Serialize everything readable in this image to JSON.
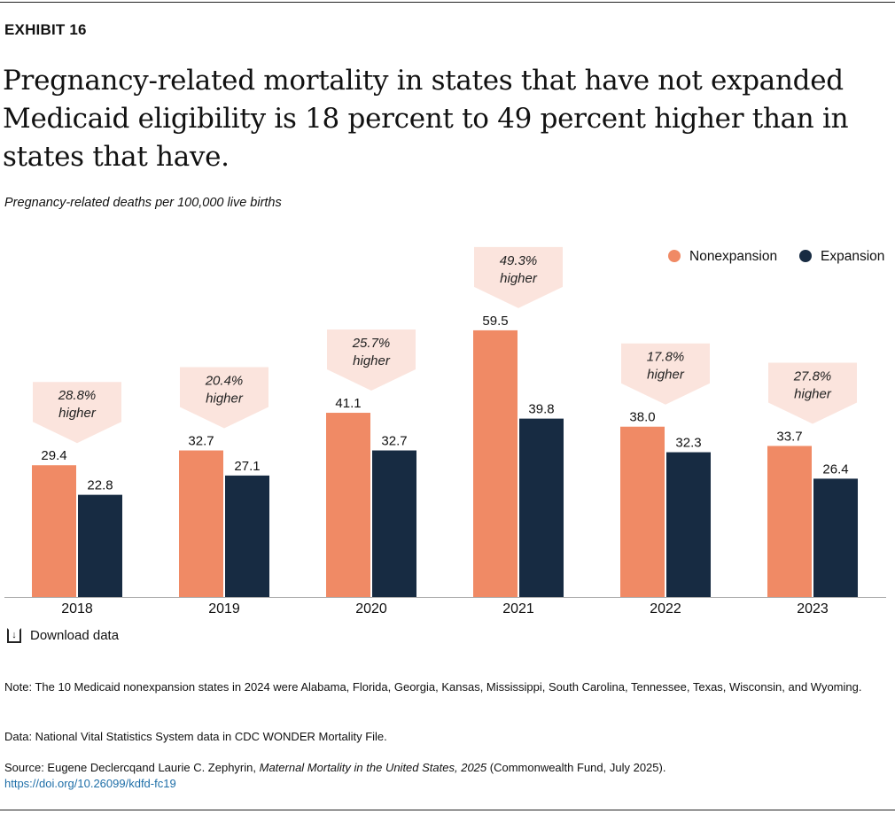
{
  "exhibit_label": "EXHIBIT 16",
  "title": "Pregnancy-related mortality in states that have not expanded Medicaid eligibility is 18 percent to 49 percent higher than in states that have.",
  "download_label": "Download data",
  "note": "Note: The 10 Medicaid nonexpansion states in 2024 were Alabama, Florida, Georgia, Kansas, Mississippi, South Carolina, Tennessee, Texas, Wisconsin, and Wyoming.",
  "data_note": "Data: National Vital Statistics System data in CDC WONDER Mortality File.",
  "source": {
    "prefix": "Source: Eugene Declercqand Laurie C. Zephyrin, ",
    "title": "Maternal Mortality in the United States, 2025",
    "suffix": " (Commonwealth Fund, July 2025).",
    "link": "https://doi.org/10.26099/kdfd-fc19"
  },
  "chart_data": {
    "type": "bar",
    "subtitle": "Pregnancy-related deaths per 100,000 live births",
    "categories": [
      "2018",
      "2019",
      "2020",
      "2021",
      "2022",
      "2023"
    ],
    "series": [
      {
        "name": "Nonexpansion",
        "color": "#f08a65",
        "values": [
          29.4,
          32.7,
          41.1,
          59.5,
          38.0,
          33.7
        ]
      },
      {
        "name": "Expansion",
        "color": "#172b42",
        "values": [
          22.8,
          27.1,
          32.7,
          39.8,
          32.3,
          26.4
        ]
      }
    ],
    "annotations": [
      {
        "pct": "28.8%",
        "text": "higher"
      },
      {
        "pct": "20.4%",
        "text": "higher"
      },
      {
        "pct": "25.7%",
        "text": "higher"
      },
      {
        "pct": "49.3%",
        "text": "higher"
      },
      {
        "pct": "17.8%",
        "text": "higher"
      },
      {
        "pct": "27.8%",
        "text": "higher"
      }
    ],
    "annotation_color": "#fbe4dd",
    "legend_position": "top-right",
    "grid": false
  }
}
